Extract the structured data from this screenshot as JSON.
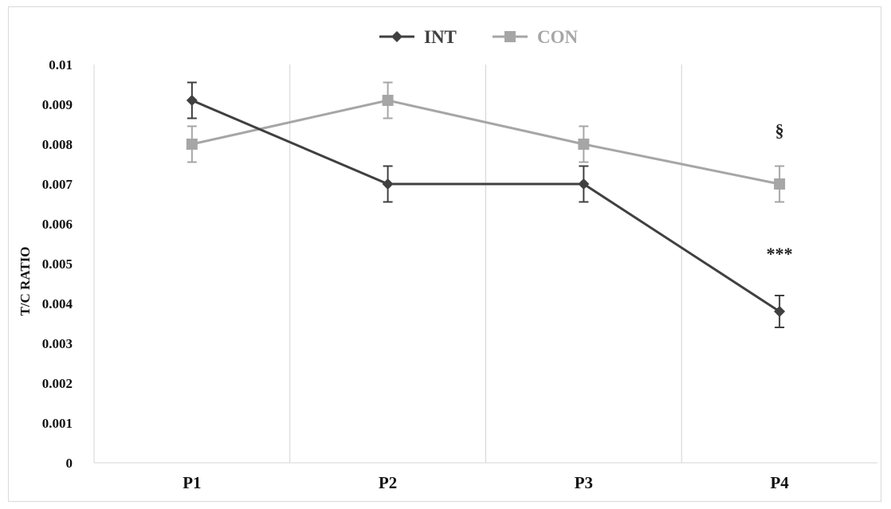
{
  "chart_data": {
    "type": "line",
    "title": "",
    "xlabel": "",
    "ylabel": "T/C RATIO",
    "categories": [
      "P1",
      "P2",
      "P3",
      "P4"
    ],
    "ylim": [
      0,
      0.01
    ],
    "yticks": [
      "0",
      "0.001",
      "0.002",
      "0.003",
      "0.004",
      "0.005",
      "0.006",
      "0.007",
      "0.008",
      "0.009",
      "0.01"
    ],
    "grid": "vertical",
    "legend_position": "top-center",
    "series": [
      {
        "name": "INT",
        "color": "#404040",
        "marker": "diamond",
        "values": [
          0.0091,
          0.007,
          0.007,
          0.0038
        ],
        "error": [
          0.00045,
          0.00045,
          0.00045,
          0.0004
        ]
      },
      {
        "name": "CON",
        "color": "#a6a6a6",
        "marker": "square",
        "values": [
          0.008,
          0.0091,
          0.008,
          0.007
        ],
        "error": [
          0.00045,
          0.00045,
          0.00045,
          0.00045
        ]
      }
    ],
    "annotations": [
      {
        "text": "§",
        "category": "P4",
        "y": 0.0082
      },
      {
        "text": "***",
        "category": "P4",
        "y": 0.0051
      }
    ]
  }
}
